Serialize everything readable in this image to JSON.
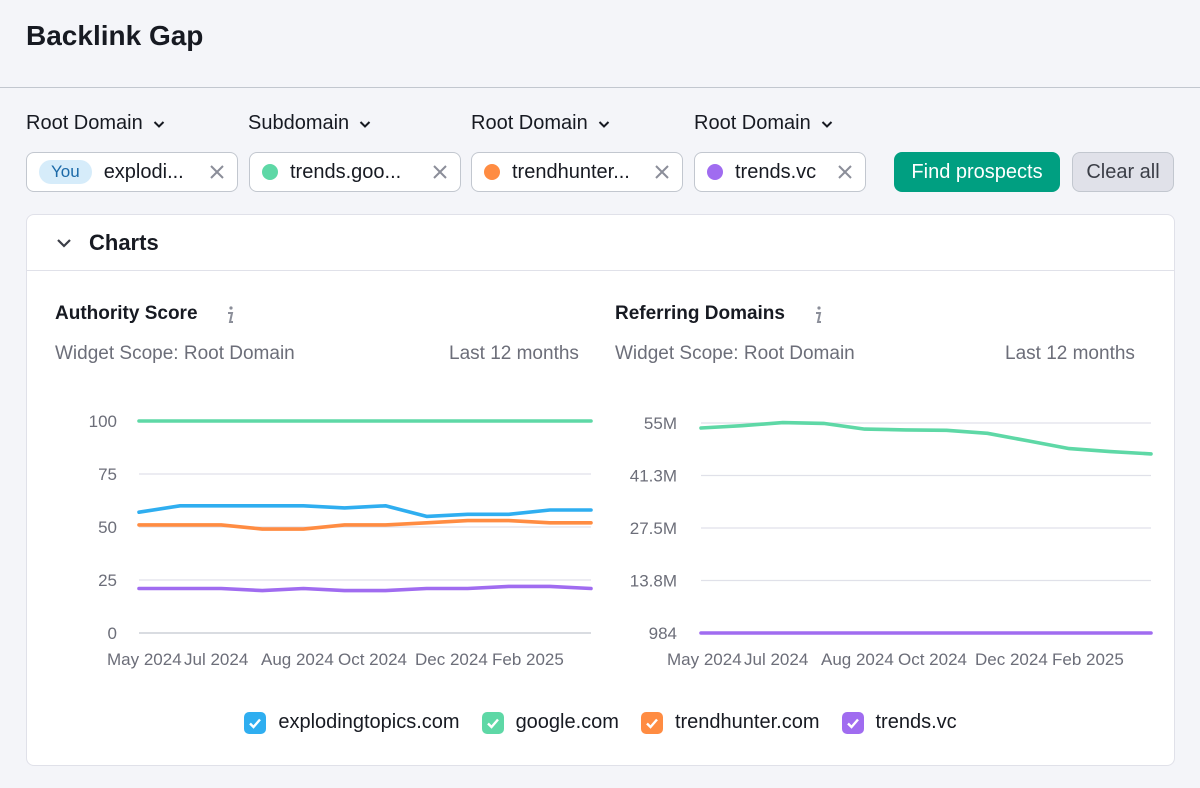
{
  "page": {
    "title": "Backlink Gap"
  },
  "selectors": [
    {
      "label": "Root Domain"
    },
    {
      "label": "Subdomain"
    },
    {
      "label": "Root Domain"
    },
    {
      "label": "Root Domain"
    }
  ],
  "domains": [
    {
      "badge": "You",
      "value": "explodi...",
      "color": ""
    },
    {
      "badge": "",
      "value": "trends.goo...",
      "color": "#5ed8a6"
    },
    {
      "badge": "",
      "value": "trendhunter...",
      "color": "#ff8c42"
    },
    {
      "badge": "",
      "value": "trends.vc",
      "color": "#a06cf0"
    }
  ],
  "actions": {
    "find_label": "Find prospects",
    "clear_label": "Clear all"
  },
  "charts_section": {
    "title": "Charts"
  },
  "chart_data": [
    {
      "type": "line",
      "title": "Authority Score",
      "scope": "Widget Scope: Root Domain",
      "period": "Last 12 months",
      "ylim": [
        0,
        100
      ],
      "y_ticks": [
        "100",
        "75",
        "50",
        "25",
        "0"
      ],
      "x_ticks": [
        "May 2024",
        "Jul 2024",
        "Aug 2024",
        "Oct 2024",
        "Dec 2024",
        "Feb 2025"
      ],
      "grid": true,
      "series": [
        {
          "name": "google.com",
          "color": "#5ed8a6",
          "values": [
            100,
            100,
            100,
            100,
            100,
            100,
            100,
            100,
            100,
            100,
            100,
            100
          ]
        },
        {
          "name": "explodingtopics.com",
          "color": "#2faef0",
          "values": [
            57,
            60,
            60,
            60,
            60,
            59,
            60,
            55,
            56,
            56,
            58,
            58
          ]
        },
        {
          "name": "trendhunter.com",
          "color": "#ff8c42",
          "values": [
            51,
            51,
            51,
            49,
            49,
            51,
            51,
            52,
            53,
            53,
            52,
            52
          ]
        },
        {
          "name": "trends.vc",
          "color": "#a06cf0",
          "values": [
            21,
            21,
            21,
            20,
            21,
            20,
            20,
            21,
            21,
            22,
            22,
            21
          ]
        }
      ]
    },
    {
      "type": "line",
      "title": "Referring Domains",
      "scope": "Widget Scope: Root Domain",
      "period": "Last 12 months",
      "ylim": [
        984,
        55000000
      ],
      "y_ticks": [
        "55M",
        "41.3M",
        "27.5M",
        "13.8M",
        "984"
      ],
      "x_ticks": [
        "May 2024",
        "Jul 2024",
        "Aug 2024",
        "Oct 2024",
        "Dec 2024",
        "Feb 2025"
      ],
      "grid": true,
      "series": [
        {
          "name": "google.com",
          "color": "#5ed8a6",
          "values": [
            53700000,
            54300000,
            55100000,
            54900000,
            53400000,
            53200000,
            53100000,
            52300000,
            50300000,
            48300000,
            47500000,
            46900000
          ]
        },
        {
          "name": "trends.vc",
          "color": "#a06cf0",
          "values": [
            984,
            984,
            984,
            984,
            984,
            984,
            984,
            984,
            984,
            984,
            984,
            984
          ]
        }
      ]
    }
  ],
  "legend": [
    {
      "label": "explodingtopics.com",
      "color": "#2faef0"
    },
    {
      "label": "google.com",
      "color": "#5ed8a6"
    },
    {
      "label": "trendhunter.com",
      "color": "#ff8c42"
    },
    {
      "label": "trends.vc",
      "color": "#a06cf0"
    }
  ]
}
